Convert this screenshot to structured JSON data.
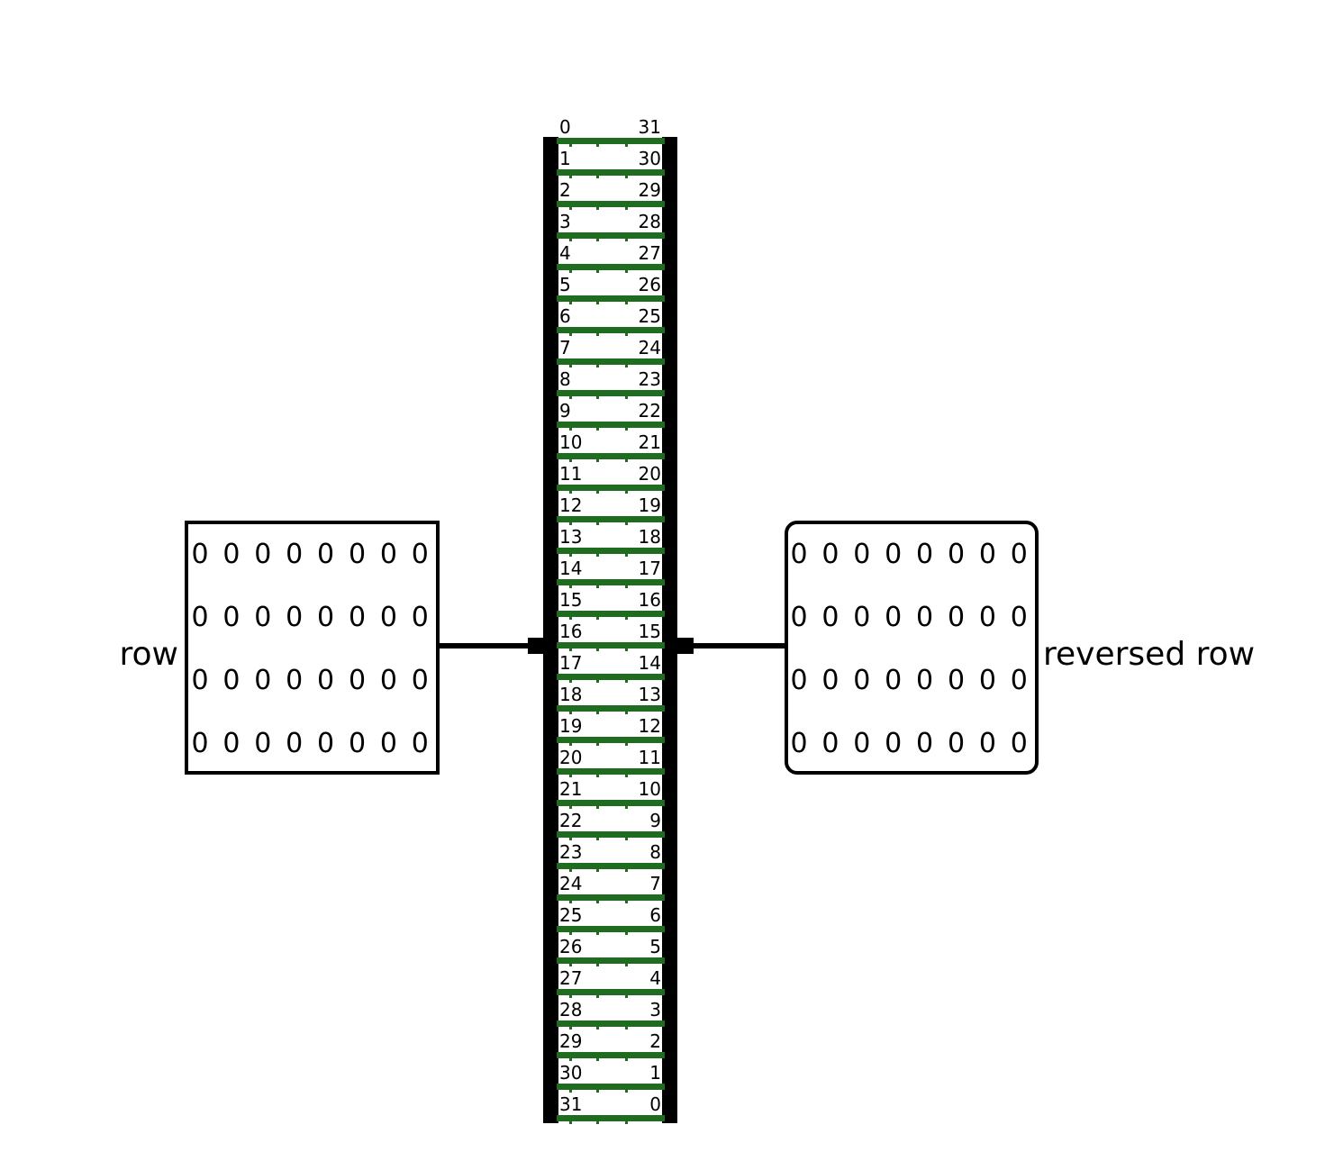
{
  "input_pin": {
    "label": "row",
    "rows": [
      [
        "0",
        "0",
        "0",
        "0",
        "0",
        "0",
        "0",
        "0"
      ],
      [
        "0",
        "0",
        "0",
        "0",
        "0",
        "0",
        "0",
        "0"
      ],
      [
        "0",
        "0",
        "0",
        "0",
        "0",
        "0",
        "0",
        "0"
      ],
      [
        "0",
        "0",
        "0",
        "0",
        "0",
        "0",
        "0",
        "0"
      ]
    ]
  },
  "output_pin": {
    "label": "reversed row",
    "rows": [
      [
        "0",
        "0",
        "0",
        "0",
        "0",
        "0",
        "0",
        "0"
      ],
      [
        "0",
        "0",
        "0",
        "0",
        "0",
        "0",
        "0",
        "0"
      ],
      [
        "0",
        "0",
        "0",
        "0",
        "0",
        "0",
        "0",
        "0"
      ],
      [
        "0",
        "0",
        "0",
        "0",
        "0",
        "0",
        "0",
        "0"
      ]
    ]
  },
  "splitter": {
    "left_bits": [
      "0",
      "1",
      "2",
      "3",
      "4",
      "5",
      "6",
      "7",
      "8",
      "9",
      "10",
      "11",
      "12",
      "13",
      "14",
      "15",
      "16",
      "17",
      "18",
      "19",
      "20",
      "21",
      "22",
      "23",
      "24",
      "25",
      "26",
      "27",
      "28",
      "29",
      "30",
      "31"
    ],
    "right_bits": [
      "31",
      "30",
      "29",
      "28",
      "27",
      "26",
      "25",
      "24",
      "23",
      "22",
      "21",
      "20",
      "19",
      "18",
      "17",
      "16",
      "15",
      "14",
      "13",
      "12",
      "11",
      "10",
      "9",
      "8",
      "7",
      "6",
      "5",
      "4",
      "3",
      "2",
      "1",
      "0"
    ]
  },
  "colors": {
    "wire": "#000000",
    "bit_wire": "#1f6b1f",
    "box_border": "#000000"
  }
}
